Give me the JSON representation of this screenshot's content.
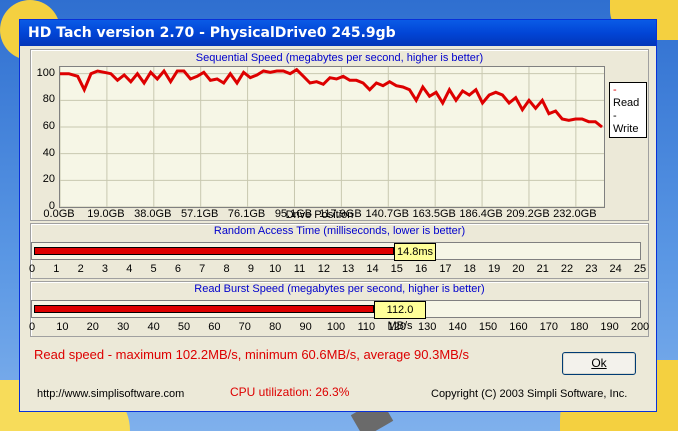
{
  "window": {
    "title": "HD Tach version 2.70 - PhysicalDrive0 245.9gb"
  },
  "sequential": {
    "title": "Sequential Speed (megabytes per second, higher is better)",
    "xlabel": "Drive Position",
    "legend": {
      "read": "Read",
      "write": "Write"
    },
    "yticks": [
      "100",
      "80",
      "60",
      "40",
      "20",
      "0"
    ],
    "xticks": [
      "0.0GB",
      "19.0GB",
      "38.0GB",
      "57.1GB",
      "76.1GB",
      "95.1GB",
      "117.9GB",
      "140.7GB",
      "163.5GB",
      "186.4GB",
      "209.2GB",
      "232.0GB"
    ]
  },
  "random_access": {
    "title": "Random Access Time (milliseconds, lower is better)",
    "value_label": "14.8ms",
    "value": 14.8,
    "max": 25,
    "ticks": [
      "0",
      "1",
      "2",
      "3",
      "4",
      "5",
      "6",
      "7",
      "8",
      "9",
      "10",
      "11",
      "12",
      "13",
      "14",
      "15",
      "16",
      "17",
      "18",
      "19",
      "20",
      "21",
      "22",
      "23",
      "24",
      "25"
    ]
  },
  "burst": {
    "title": "Read Burst Speed (megabytes per second, higher is better)",
    "value_label": "112.0 MB/s",
    "value": 112.0,
    "max": 200,
    "ticks": [
      "0",
      "10",
      "20",
      "30",
      "40",
      "50",
      "60",
      "70",
      "80",
      "90",
      "100",
      "110",
      "120",
      "130",
      "140",
      "150",
      "160",
      "170",
      "180",
      "190",
      "200"
    ]
  },
  "summary": "Read speed - maximum 102.2MB/s, minimum 60.6MB/s, average 90.3MB/s",
  "cpu": "CPU utilization: 26.3%",
  "url": "http://www.simplisoftware.com",
  "copyright": "Copyright (C) 2003 Simpli Software, Inc.",
  "ok_label": "Ok",
  "colors": {
    "read": "#dd0000",
    "title_text": "#0000cc",
    "titlebar": "#0245d6"
  },
  "chart_data": {
    "type": "line",
    "title": "Sequential Speed (megabytes per second, higher is better)",
    "xlabel": "Drive Position",
    "ylabel": "",
    "ylim": [
      0,
      105
    ],
    "x_range_gb": [
      0,
      245.9
    ],
    "series": [
      {
        "name": "Read",
        "x": [
          0,
          4,
          8,
          11,
          14,
          17,
          20,
          23,
          26,
          29,
          32,
          35,
          38,
          41,
          44,
          47,
          50,
          53,
          56,
          59,
          62,
          65,
          68,
          71,
          74,
          77,
          80,
          83,
          86,
          89,
          92,
          95,
          98,
          101,
          104,
          107,
          110,
          113,
          116,
          119,
          122,
          125,
          128,
          131,
          134,
          137,
          140,
          143,
          146,
          149,
          152,
          155,
          158,
          161,
          164,
          167,
          170,
          173,
          176,
          179,
          182,
          185,
          188,
          191,
          194,
          197,
          200,
          203,
          206,
          209,
          212,
          215,
          218,
          221,
          224,
          227,
          230,
          233,
          236,
          239,
          242,
          245
        ],
        "y": [
          100,
          100,
          98,
          88,
          100,
          102,
          101,
          100,
          95,
          99,
          94,
          100,
          93,
          101,
          96,
          102,
          94,
          102,
          102,
          96,
          98,
          101,
          95,
          96,
          93,
          100,
          93,
          101,
          97,
          99,
          102,
          101,
          102,
          102,
          100,
          103,
          98,
          93,
          94,
          92,
          97,
          96,
          98,
          95,
          95,
          93,
          88,
          93,
          91,
          94,
          91,
          90,
          88,
          80,
          90,
          83,
          86,
          78,
          88,
          80,
          87,
          84,
          88,
          78,
          84,
          86,
          84,
          78,
          82,
          73,
          80,
          74,
          80,
          70,
          72,
          66,
          65,
          66,
          66,
          64,
          64,
          60
        ]
      },
      {
        "name": "Write",
        "x": [],
        "y": []
      }
    ],
    "grid": true,
    "legend_position": "top-right"
  }
}
